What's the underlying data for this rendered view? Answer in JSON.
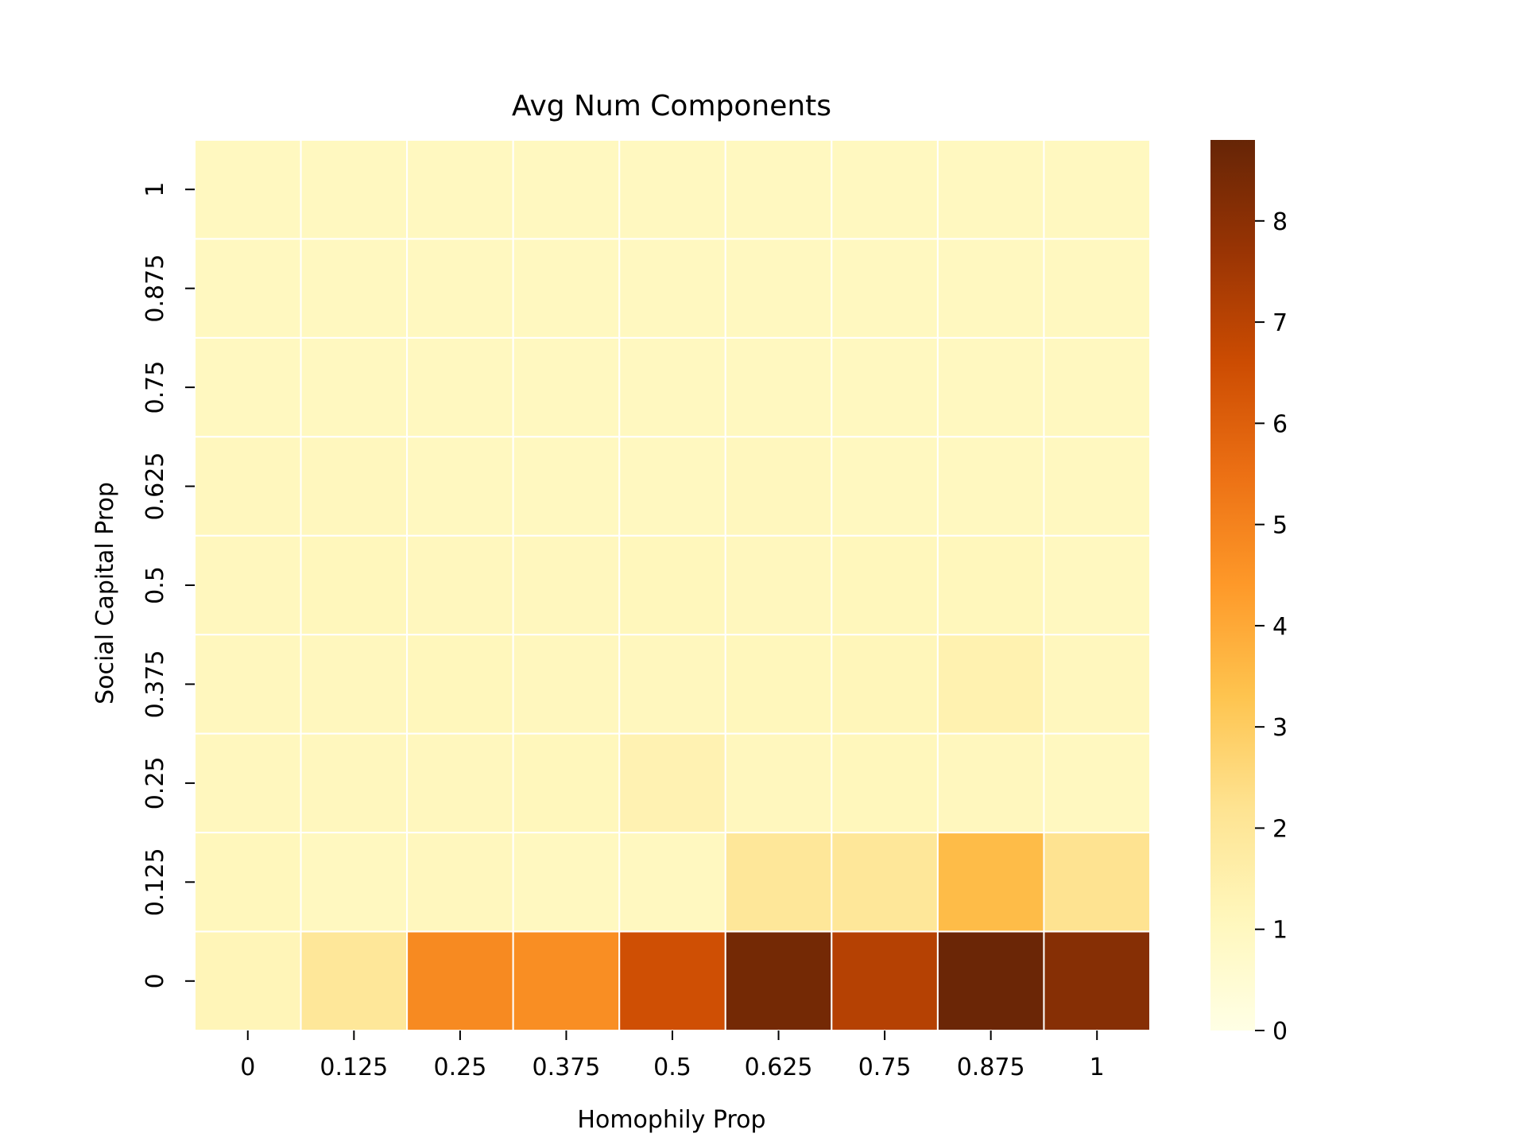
{
  "chart_data": {
    "type": "heatmap",
    "title": "Avg Num Components",
    "xlabel": "Homophily Prop",
    "ylabel": "Social Capital Prop",
    "x_categories": [
      "0",
      "0.125",
      "0.25",
      "0.375",
      "0.5",
      "0.625",
      "0.75",
      "0.875",
      "1"
    ],
    "y_categories": [
      "0",
      "0.125",
      "0.25",
      "0.375",
      "0.5",
      "0.625",
      "0.75",
      "0.875",
      "1"
    ],
    "y_order": "top-to-bottom: 1, 0.875, 0.75, 0.625, 0.5, 0.375, 0.25, 0.125, 0",
    "values_by_row_top_to_bottom": [
      [
        1.0,
        1.0,
        1.0,
        1.0,
        1.0,
        1.0,
        1.0,
        1.0,
        1.0
      ],
      [
        1.0,
        1.0,
        1.0,
        1.0,
        1.0,
        1.0,
        1.0,
        1.0,
        1.0
      ],
      [
        1.0,
        1.0,
        1.0,
        1.0,
        1.0,
        1.0,
        1.0,
        1.0,
        1.0
      ],
      [
        1.05,
        1.05,
        1.0,
        1.0,
        1.0,
        1.05,
        1.0,
        1.0,
        1.0
      ],
      [
        1.05,
        1.1,
        1.05,
        1.05,
        1.1,
        1.05,
        1.1,
        1.1,
        1.0
      ],
      [
        1.05,
        1.05,
        1.1,
        1.05,
        1.05,
        1.1,
        1.15,
        1.4,
        1.05
      ],
      [
        1.05,
        1.05,
        1.05,
        1.1,
        1.35,
        1.05,
        1.1,
        1.05,
        1.0
      ],
      [
        1.1,
        1.0,
        1.05,
        1.0,
        1.0,
        2.0,
        2.0,
        3.5,
        2.2
      ],
      [
        1.2,
        2.0,
        4.8,
        4.7,
        6.5,
        8.5,
        7.1,
        8.7,
        8.1
      ]
    ],
    "colorbar": {
      "colormap": "YlOrBr",
      "min": 0,
      "max": 8.8,
      "ticks": [
        "0",
        "1",
        "2",
        "3",
        "4",
        "5",
        "6",
        "7",
        "8"
      ]
    },
    "grid": true,
    "cell_border_color": "#ffffff"
  }
}
